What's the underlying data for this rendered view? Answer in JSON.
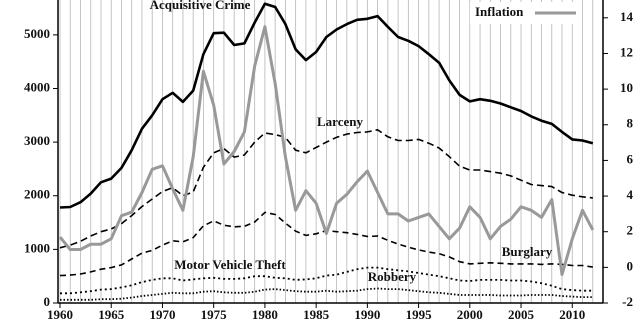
{
  "chart_data": {
    "type": "line",
    "x": [
      1960,
      1961,
      1962,
      1963,
      1964,
      1965,
      1966,
      1967,
      1968,
      1969,
      1970,
      1971,
      1972,
      1973,
      1974,
      1975,
      1976,
      1977,
      1978,
      1979,
      1980,
      1981,
      1982,
      1983,
      1984,
      1985,
      1986,
      1987,
      1988,
      1989,
      1990,
      1991,
      1992,
      1993,
      1994,
      1995,
      1996,
      1997,
      1998,
      1999,
      2000,
      2001,
      2002,
      2003,
      2004,
      2005,
      2006,
      2007,
      2008,
      2009,
      2010,
      2011,
      2012
    ],
    "xlim": [
      1960,
      2013
    ],
    "xticks": [
      1960,
      1965,
      1970,
      1975,
      1980,
      1985,
      1990,
      1995,
      2000,
      2005,
      2010
    ],
    "ylim": [
      0,
      5650
    ],
    "yticks": [
      0,
      1000,
      2000,
      3000,
      4000,
      5000
    ],
    "y2lim": [
      -2,
      15
    ],
    "y2ticks": [
      -2,
      0,
      2,
      4,
      6,
      8,
      10,
      12,
      14
    ],
    "grid": true,
    "series": [
      {
        "name": "Acquisitive Crime",
        "color": "#000000",
        "values": [
          1780,
          1790,
          1880,
          2040,
          2250,
          2320,
          2520,
          2850,
          3250,
          3500,
          3800,
          3920,
          3750,
          3960,
          4640,
          5030,
          5040,
          4810,
          4840,
          5230,
          5580,
          5520,
          5200,
          4730,
          4530,
          4680,
          4960,
          5100,
          5200,
          5280,
          5300,
          5350,
          5150,
          4960,
          4890,
          4790,
          4640,
          4480,
          4150,
          3880,
          3760,
          3800,
          3770,
          3720,
          3650,
          3580,
          3480,
          3400,
          3340,
          3190,
          3050,
          3030,
          2980
        ]
      },
      {
        "name": "Larceny",
        "color": "#000000",
        "values": [
          1030,
          1080,
          1150,
          1250,
          1330,
          1380,
          1480,
          1630,
          1800,
          1940,
          2080,
          2150,
          2000,
          2070,
          2530,
          2800,
          2880,
          2720,
          2760,
          3000,
          3170,
          3140,
          3090,
          2850,
          2800,
          2900,
          3000,
          3090,
          3150,
          3180,
          3190,
          3230,
          3100,
          3030,
          3030,
          3050,
          2980,
          2890,
          2730,
          2550,
          2480,
          2480,
          2450,
          2420,
          2370,
          2290,
          2210,
          2190,
          2170,
          2060,
          2010,
          1980,
          1960
        ]
      },
      {
        "name": "Burglary",
        "color": "#000000",
        "values": [
          510,
          520,
          540,
          580,
          630,
          660,
          710,
          820,
          930,
          980,
          1080,
          1160,
          1140,
          1220,
          1440,
          1530,
          1450,
          1420,
          1430,
          1510,
          1690,
          1650,
          1490,
          1340,
          1260,
          1290,
          1350,
          1330,
          1310,
          1280,
          1240,
          1250,
          1170,
          1100,
          1040,
          990,
          950,
          920,
          860,
          770,
          730,
          740,
          750,
          740,
          730,
          730,
          730,
          720,
          730,
          720,
          700,
          700,
          670
        ]
      },
      {
        "name": "Motor Vehicle Theft",
        "color": "#000000",
        "values": [
          180,
          180,
          200,
          220,
          250,
          260,
          290,
          330,
          390,
          430,
          460,
          460,
          420,
          440,
          460,
          470,
          450,
          450,
          460,
          500,
          500,
          470,
          460,
          430,
          440,
          460,
          510,
          530,
          580,
          630,
          660,
          660,
          630,
          610,
          590,
          560,
          530,
          500,
          460,
          420,
          410,
          430,
          430,
          430,
          420,
          420,
          400,
          370,
          320,
          260,
          240,
          230,
          230
        ]
      },
      {
        "name": "Robbery",
        "color": "#000000",
        "values": [
          60,
          60,
          60,
          60,
          70,
          70,
          80,
          100,
          130,
          150,
          170,
          190,
          180,
          180,
          210,
          220,
          200,
          190,
          190,
          210,
          250,
          260,
          240,
          220,
          210,
          210,
          230,
          210,
          220,
          230,
          260,
          270,
          260,
          260,
          240,
          220,
          200,
          190,
          170,
          150,
          150,
          150,
          150,
          140,
          140,
          140,
          150,
          150,
          150,
          130,
          120,
          110,
          110
        ]
      },
      {
        "name": "Inflation",
        "color": "#999999",
        "axis": "y2",
        "values": [
          1.7,
          1.0,
          1.0,
          1.3,
          1.3,
          1.6,
          2.9,
          3.1,
          4.2,
          5.5,
          5.7,
          4.4,
          3.2,
          6.2,
          11.0,
          9.1,
          5.8,
          6.5,
          7.6,
          11.3,
          13.5,
          10.3,
          6.2,
          3.2,
          4.3,
          3.6,
          1.9,
          3.6,
          4.1,
          4.8,
          5.4,
          4.2,
          3.0,
          3.0,
          2.6,
          2.8,
          3.0,
          2.3,
          1.6,
          2.2,
          3.4,
          2.8,
          1.6,
          2.3,
          2.7,
          3.4,
          3.2,
          2.8,
          3.8,
          -0.4,
          1.6,
          3.2,
          2.1
        ]
      }
    ]
  }
}
